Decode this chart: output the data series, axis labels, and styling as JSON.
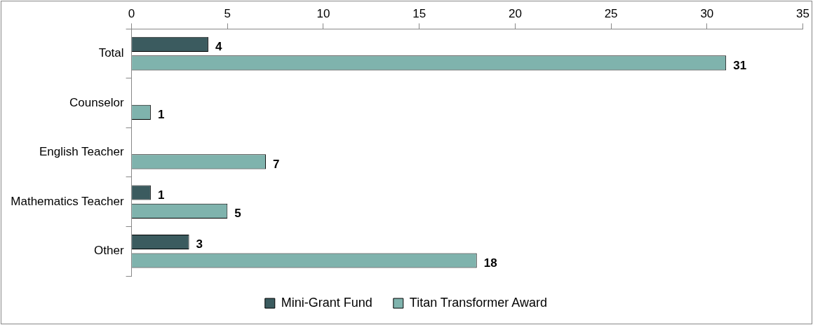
{
  "chart_data": {
    "type": "bar",
    "orientation": "horizontal",
    "categories": [
      "Total",
      "Counselor",
      "English Teacher",
      "Mathematics Teacher",
      "Other"
    ],
    "series": [
      {
        "name": "Mini-Grant Fund",
        "color": "#3b5b5f",
        "values": [
          4,
          null,
          null,
          1,
          3
        ]
      },
      {
        "name": "Titan Transformer Award",
        "color": "#7fb3ad",
        "values": [
          31,
          1,
          7,
          5,
          18
        ]
      }
    ],
    "xlim": [
      0,
      35
    ],
    "xticks": [
      0,
      5,
      10,
      15,
      20,
      25,
      30,
      35
    ],
    "grid": false,
    "legend": "bottom",
    "data_labels": true
  }
}
